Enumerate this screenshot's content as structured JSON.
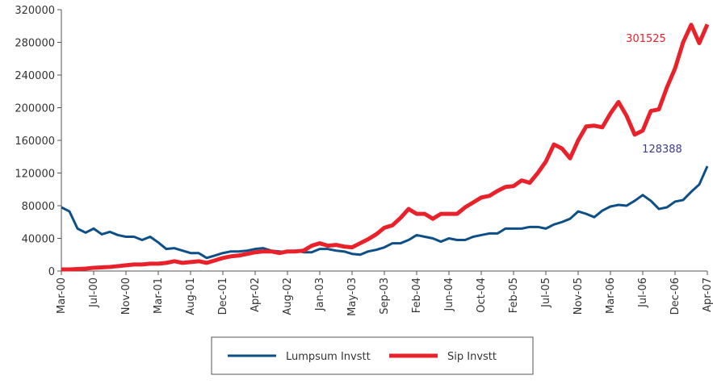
{
  "chart_data": {
    "type": "line",
    "categories": [
      "Mar-00",
      null,
      null,
      null,
      "Jul-00",
      null,
      null,
      null,
      "Nov-00",
      null,
      null,
      null,
      "Mar-01",
      null,
      null,
      null,
      "Aug-01",
      null,
      null,
      null,
      "Dec-01",
      null,
      null,
      null,
      "Apr-02",
      null,
      null,
      null,
      "Aug-02",
      null,
      null,
      null,
      "Jan-03",
      null,
      null,
      null,
      "May-03",
      null,
      null,
      null,
      "Sep-03",
      null,
      null,
      null,
      "Feb-04",
      null,
      null,
      null,
      "Jun-04",
      null,
      null,
      null,
      "Oct-04",
      null,
      null,
      null,
      "Feb-05",
      null,
      null,
      null,
      "Jul-05",
      null,
      null,
      null,
      "Nov-05",
      null,
      null,
      null,
      "Mar-06",
      null,
      null,
      null,
      "Jul-06",
      null,
      null,
      null,
      "Dec-06",
      null,
      null,
      null,
      "Apr-07"
    ],
    "series": [
      {
        "name": "Lumpsum Invstt",
        "color": "#0d4f86",
        "values": [
          78000,
          73000,
          52000,
          47000,
          52000,
          45000,
          48000,
          44000,
          42000,
          42000,
          38000,
          42000,
          35000,
          27000,
          28000,
          25000,
          22000,
          22000,
          16000,
          19000,
          22000,
          24000,
          24000,
          25000,
          27000,
          28000,
          25000,
          24000,
          23000,
          25000,
          23000,
          23000,
          27000,
          27000,
          25000,
          24000,
          21000,
          20000,
          24000,
          26000,
          29000,
          34000,
          34000,
          38000,
          44000,
          42000,
          40000,
          36000,
          40000,
          38000,
          38000,
          42000,
          44000,
          46000,
          46000,
          52000,
          52000,
          52000,
          54000,
          54000,
          52000,
          57000,
          60000,
          64000,
          73000,
          70000,
          66000,
          74000,
          79000,
          81000,
          80000,
          86000,
          93000,
          86000,
          76000,
          78000,
          85000,
          87000,
          97000,
          106000,
          128388
        ]
      },
      {
        "name": "Sip Invstt",
        "color": "#e8212b",
        "values": [
          2000,
          2000,
          2500,
          3000,
          4000,
          4500,
          5000,
          6000,
          7000,
          8000,
          8000,
          9000,
          9000,
          10000,
          12000,
          10000,
          11000,
          12000,
          10000,
          13000,
          16000,
          18000,
          19000,
          21000,
          23000,
          24000,
          24000,
          22000,
          24000,
          24000,
          25000,
          31000,
          34000,
          31000,
          32000,
          30000,
          29000,
          34000,
          39000,
          45000,
          53000,
          56000,
          65000,
          76000,
          70000,
          70000,
          64000,
          70000,
          70000,
          70000,
          78000,
          84000,
          90000,
          92000,
          98000,
          103000,
          104000,
          111000,
          108000,
          120000,
          134000,
          155000,
          150000,
          138000,
          160000,
          177000,
          178000,
          176000,
          193000,
          207000,
          190000,
          167000,
          172000,
          196000,
          198000,
          225000,
          248000,
          280000,
          301525,
          279000,
          302000
        ]
      }
    ],
    "annotations": [
      {
        "text": "301525",
        "color": "#e8212b"
      },
      {
        "text": "128388",
        "color": "#3b3b8f"
      }
    ],
    "ylim": [
      0,
      320000
    ],
    "yticks": [
      0,
      40000,
      80000,
      120000,
      160000,
      200000,
      240000,
      280000,
      320000
    ],
    "grid": false,
    "legend": "bottom"
  }
}
